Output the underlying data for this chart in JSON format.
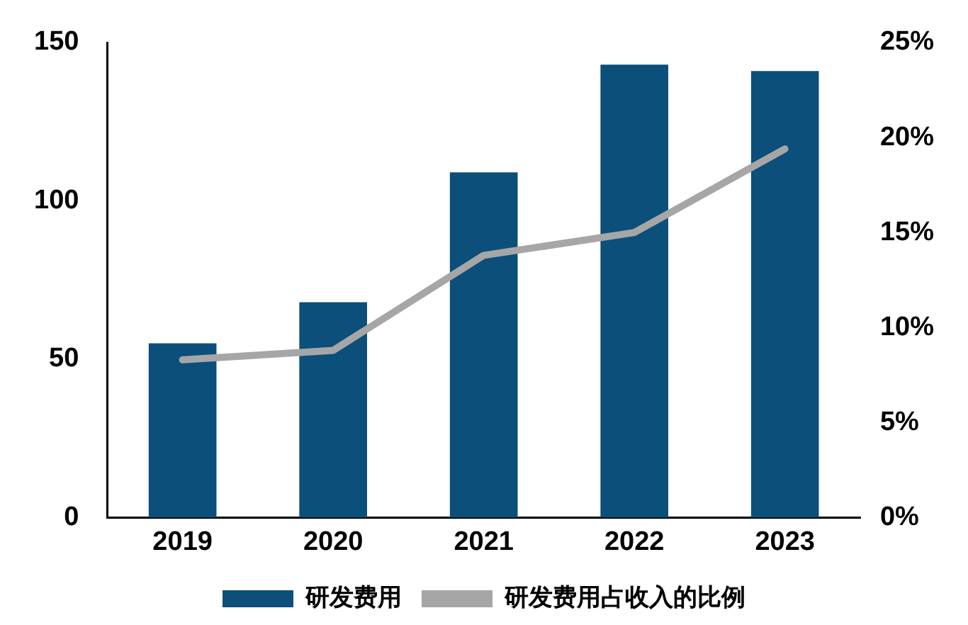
{
  "chart_data": {
    "type": "bar",
    "categories": [
      "2019",
      "2020",
      "2021",
      "2022",
      "2023"
    ],
    "series": [
      {
        "name": "研发费用",
        "color": "#0b4f7a",
        "values": [
          55,
          68,
          109,
          143,
          141
        ]
      },
      {
        "name": "研发费用占收入的比例",
        "type": "line",
        "axis": "y2",
        "color": "#a6a6a6",
        "values": [
          8.3,
          8.8,
          13.8,
          15.0,
          19.4
        ]
      }
    ],
    "ylim": [
      0,
      150
    ],
    "yticks": [
      0,
      50,
      100,
      150
    ],
    "y2lim": [
      0,
      25
    ],
    "y2ticks": [
      {
        "value": 0,
        "label": "0%"
      },
      {
        "value": 5,
        "label": "5%"
      },
      {
        "value": 10,
        "label": "10%"
      },
      {
        "value": 15,
        "label": "15%"
      },
      {
        "value": 20,
        "label": "20%"
      },
      {
        "value": 25,
        "label": "25%"
      }
    ],
    "grid": false,
    "legend": "bottom",
    "marker": "none",
    "line_style": "solid"
  }
}
